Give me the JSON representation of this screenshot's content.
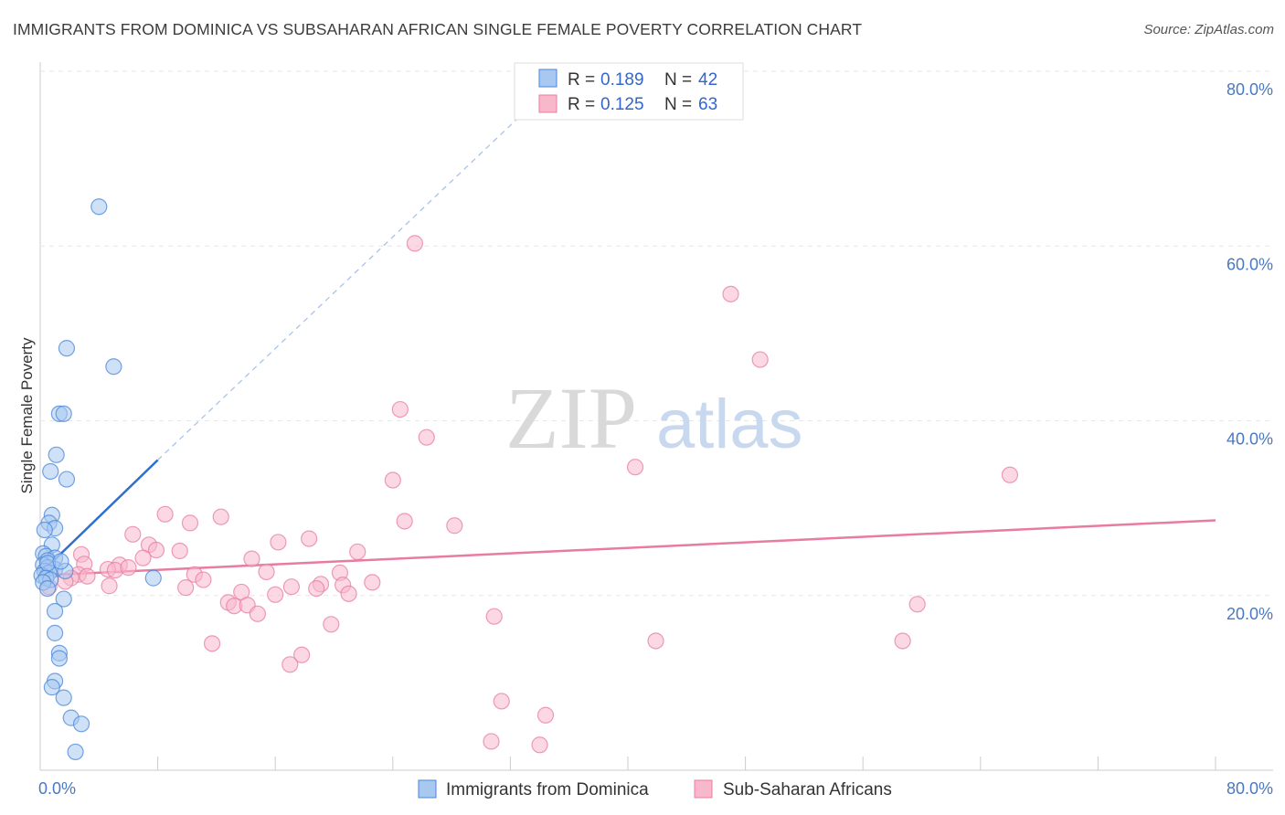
{
  "header": {
    "title": "IMMIGRANTS FROM DOMINICA VS SUBSAHARAN AFRICAN SINGLE FEMALE POVERTY CORRELATION CHART",
    "source": "Source: ZipAtlas.com"
  },
  "watermark": {
    "zip": "ZIP",
    "atlas": "atlas"
  },
  "legend": {
    "rows": [
      {
        "r_label": "R = ",
        "r_value": "0.189",
        "n_label": "N = ",
        "n_value": "42",
        "color": "#a8c8f0"
      },
      {
        "r_label": "R = ",
        "r_value": "0.125",
        "n_label": "N = ",
        "n_value": "63",
        "color": "#f7b8cc"
      }
    ]
  },
  "chart_data": {
    "type": "scatter",
    "title": "IMMIGRANTS FROM DOMINICA VS SUBSAHARAN AFRICAN SINGLE FEMALE POVERTY CORRELATION CHART",
    "xlabel": "",
    "ylabel": "Single Female Poverty",
    "xlim": [
      0,
      80
    ],
    "ylim": [
      0,
      80
    ],
    "x_tick_labels": [
      "0.0%",
      "80.0%"
    ],
    "y_ticks": [
      20,
      40,
      60,
      80
    ],
    "y_tick_labels": [
      "20.0%",
      "40.0%",
      "60.0%",
      "80.0%"
    ],
    "legend_position": "bottom",
    "series": [
      {
        "name": "Immigrants from Dominica",
        "color": "#4a86d8",
        "fill": "#a8c8f0",
        "r": 0.189,
        "n": 42,
        "trend": {
          "x": [
            0.0,
            8.0
          ],
          "y": [
            22.5,
            35.5
          ],
          "extend_to": [
            34.0,
            77.0
          ]
        },
        "points": [
          [
            4.0,
            64.5
          ],
          [
            1.8,
            48.3
          ],
          [
            5.0,
            46.2
          ],
          [
            1.3,
            40.8
          ],
          [
            1.6,
            40.8
          ],
          [
            1.1,
            36.1
          ],
          [
            0.7,
            34.2
          ],
          [
            1.8,
            33.3
          ],
          [
            0.8,
            29.2
          ],
          [
            0.6,
            28.3
          ],
          [
            1.0,
            27.7
          ],
          [
            0.3,
            27.5
          ],
          [
            0.8,
            25.8
          ],
          [
            0.2,
            24.8
          ],
          [
            0.4,
            24.5
          ],
          [
            1.0,
            24.3
          ],
          [
            0.5,
            24.0
          ],
          [
            0.2,
            23.5
          ],
          [
            0.5,
            23.2
          ],
          [
            1.0,
            23.0
          ],
          [
            0.3,
            22.8
          ],
          [
            0.6,
            22.6
          ],
          [
            1.7,
            22.8
          ],
          [
            0.1,
            22.3
          ],
          [
            0.4,
            22.0
          ],
          [
            0.7,
            21.8
          ],
          [
            0.2,
            21.5
          ],
          [
            7.7,
            22.0
          ],
          [
            0.5,
            20.8
          ],
          [
            1.6,
            19.6
          ],
          [
            1.0,
            18.2
          ],
          [
            1.0,
            15.7
          ],
          [
            1.3,
            13.4
          ],
          [
            1.3,
            12.8
          ],
          [
            1.0,
            10.2
          ],
          [
            0.8,
            9.5
          ],
          [
            1.6,
            8.3
          ],
          [
            2.1,
            6.0
          ],
          [
            2.8,
            5.3
          ],
          [
            2.4,
            2.1
          ],
          [
            0.5,
            23.7
          ],
          [
            1.4,
            23.9
          ]
        ]
      },
      {
        "name": "Sub-Saharan Africans",
        "color": "#e87ca0",
        "fill": "#f7b8cc",
        "r": 0.125,
        "n": 63,
        "trend": {
          "x": [
            0.0,
            80.0
          ],
          "y": [
            22.3,
            28.6
          ]
        },
        "points": [
          [
            25.5,
            60.3
          ],
          [
            47.0,
            54.5
          ],
          [
            49.0,
            47.0
          ],
          [
            24.5,
            41.3
          ],
          [
            26.3,
            38.1
          ],
          [
            40.5,
            34.7
          ],
          [
            66.0,
            33.8
          ],
          [
            24.0,
            33.2
          ],
          [
            8.5,
            29.3
          ],
          [
            12.3,
            29.0
          ],
          [
            10.2,
            28.3
          ],
          [
            24.8,
            28.5
          ],
          [
            28.2,
            28.0
          ],
          [
            6.3,
            27.0
          ],
          [
            18.3,
            26.5
          ],
          [
            16.2,
            26.1
          ],
          [
            7.4,
            25.8
          ],
          [
            7.9,
            25.2
          ],
          [
            9.5,
            25.1
          ],
          [
            21.6,
            25.0
          ],
          [
            2.8,
            24.7
          ],
          [
            7.0,
            24.3
          ],
          [
            14.4,
            24.2
          ],
          [
            3.0,
            23.6
          ],
          [
            5.4,
            23.5
          ],
          [
            4.6,
            23.0
          ],
          [
            5.1,
            22.9
          ],
          [
            6.0,
            23.2
          ],
          [
            15.4,
            22.7
          ],
          [
            20.4,
            22.6
          ],
          [
            10.5,
            22.4
          ],
          [
            11.1,
            21.8
          ],
          [
            2.6,
            22.4
          ],
          [
            3.2,
            22.2
          ],
          [
            2.1,
            22.0
          ],
          [
            1.7,
            21.6
          ],
          [
            0.6,
            21.0
          ],
          [
            4.7,
            21.1
          ],
          [
            17.1,
            21.0
          ],
          [
            19.1,
            21.3
          ],
          [
            20.6,
            21.2
          ],
          [
            18.8,
            20.8
          ],
          [
            22.6,
            21.5
          ],
          [
            9.9,
            20.9
          ],
          [
            13.7,
            20.4
          ],
          [
            16.0,
            20.1
          ],
          [
            21.0,
            20.2
          ],
          [
            12.8,
            19.2
          ],
          [
            13.2,
            18.8
          ],
          [
            14.1,
            18.9
          ],
          [
            14.8,
            17.9
          ],
          [
            59.7,
            19.0
          ],
          [
            30.9,
            17.6
          ],
          [
            19.8,
            16.7
          ],
          [
            11.7,
            14.5
          ],
          [
            41.9,
            14.8
          ],
          [
            58.7,
            14.8
          ],
          [
            17.8,
            13.2
          ],
          [
            17.0,
            12.1
          ],
          [
            31.4,
            7.9
          ],
          [
            34.4,
            6.3
          ],
          [
            30.7,
            3.3
          ],
          [
            34.0,
            2.9
          ]
        ]
      }
    ]
  }
}
